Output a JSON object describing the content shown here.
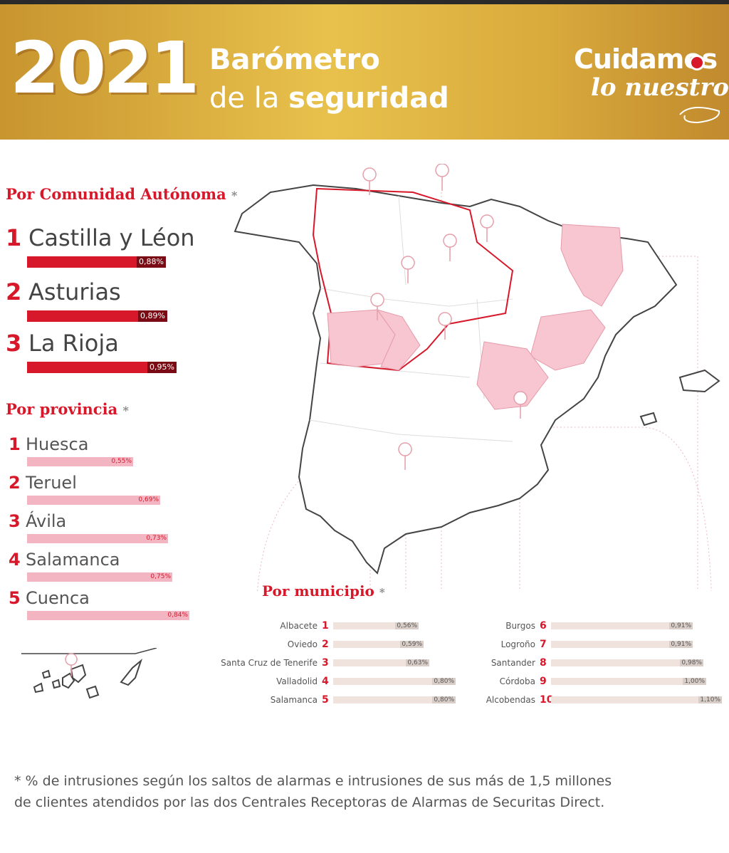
{
  "header": {
    "year": "2021",
    "title_line1": "Barómetro",
    "title_line2_prefix": "de la",
    "title_line2_bold": "seguridad",
    "brand_line1": "Cuidamos",
    "brand_line2": "lo nuestro"
  },
  "comunidad": {
    "title": "Por Comunidad Autónoma",
    "asterisk": "*",
    "items": [
      {
        "rank": "1",
        "name": "Castilla y Léon",
        "value": "0,88%",
        "pct": 0.88
      },
      {
        "rank": "2",
        "name": "Asturias",
        "value": "0,89%",
        "pct": 0.89
      },
      {
        "rank": "3",
        "name": "La Rioja",
        "value": "0,95%",
        "pct": 0.95
      }
    ]
  },
  "provincia": {
    "title": "Por provincia",
    "asterisk": "*",
    "items": [
      {
        "rank": "1",
        "name": "Huesca",
        "value": "0,55%",
        "pct": 0.55
      },
      {
        "rank": "2",
        "name": "Teruel",
        "value": "0,69%",
        "pct": 0.69
      },
      {
        "rank": "3",
        "name": "Ávila",
        "value": "0,73%",
        "pct": 0.73
      },
      {
        "rank": "4",
        "name": "Salamanca",
        "value": "0,75%",
        "pct": 0.75
      },
      {
        "rank": "5",
        "name": "Cuenca",
        "value": "0,84%",
        "pct": 0.84
      }
    ]
  },
  "municipio": {
    "title": "Por municipio",
    "asterisk": "*",
    "left": [
      {
        "rank": "1",
        "name": "Albacete",
        "value": "0,56%",
        "pct": 0.56
      },
      {
        "rank": "2",
        "name": "Oviedo",
        "value": "0,59%",
        "pct": 0.59
      },
      {
        "rank": "3",
        "name": "Santa Cruz de Tenerife",
        "value": "0,63%",
        "pct": 0.63
      },
      {
        "rank": "4",
        "name": "Valladolid",
        "value": "0,80%",
        "pct": 0.8
      },
      {
        "rank": "5",
        "name": "Salamanca",
        "value": "0,80%",
        "pct": 0.8
      }
    ],
    "right": [
      {
        "rank": "6",
        "name": "Burgos",
        "value": "0,91%",
        "pct": 0.91
      },
      {
        "rank": "7",
        "name": "Logroño",
        "value": "0,91%",
        "pct": 0.91
      },
      {
        "rank": "8",
        "name": "Santander",
        "value": "0,98%",
        "pct": 0.98
      },
      {
        "rank": "9",
        "name": "Córdoba",
        "value": "1,00%",
        "pct": 1.0
      },
      {
        "rank": "10",
        "name": "Alcobendas",
        "value": "1,10%",
        "pct": 1.1
      }
    ]
  },
  "colors": {
    "accent": "#d7182a",
    "dark_red": "#7a0a14",
    "pink": "#f4b5c2",
    "map_highlight": "#f7c6d0",
    "gold": "#dcae3f"
  },
  "icons": {
    "map_pin": "map-pin-icon",
    "brand_ring": "ring-icon"
  },
  "footnote": {
    "line1": "* % de intrusiones según los saltos de alarmas e intrusiones de sus más de 1,5 millones",
    "line2": "de clientes atendidos por las dos Centrales Receptoras de Alarmas de Securitas Direct."
  }
}
